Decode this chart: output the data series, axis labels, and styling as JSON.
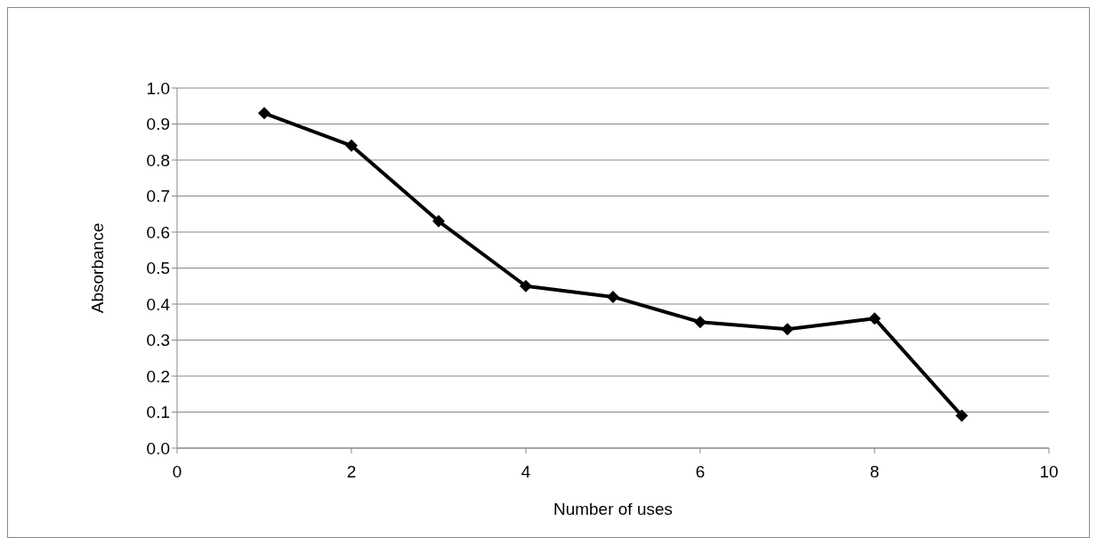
{
  "chart_data": {
    "type": "line",
    "xlabel": "Number of uses",
    "ylabel": "Absorbance",
    "x": [
      1,
      2,
      3,
      4,
      5,
      6,
      7,
      8,
      9
    ],
    "series": [
      {
        "color": "#000000",
        "values": [
          0.93,
          0.84,
          0.63,
          0.45,
          0.42,
          0.35,
          0.33,
          0.36,
          0.09
        ]
      }
    ],
    "xlim": [
      0,
      10
    ],
    "xticks": [
      0,
      2,
      4,
      6,
      8,
      10
    ],
    "ylim": [
      0,
      1
    ],
    "yticks": [
      {
        "value": 0,
        "label": "0.0"
      },
      {
        "value": 0.1,
        "label": "0.1"
      },
      {
        "value": 0.2,
        "label": "0.2"
      },
      {
        "value": 0.3,
        "label": "0.3"
      },
      {
        "value": 0.4,
        "label": "0.4"
      },
      {
        "value": 0.5,
        "label": "0.5"
      },
      {
        "value": 0.6,
        "label": "0.6"
      },
      {
        "value": 0.7,
        "label": "0.7"
      },
      {
        "value": 0.8,
        "label": "0.8"
      },
      {
        "value": 0.9,
        "label": "0.9"
      },
      {
        "value": 1,
        "label": "1.0"
      }
    ],
    "grid": "y",
    "marker": "diamond",
    "line_style": "solid"
  }
}
